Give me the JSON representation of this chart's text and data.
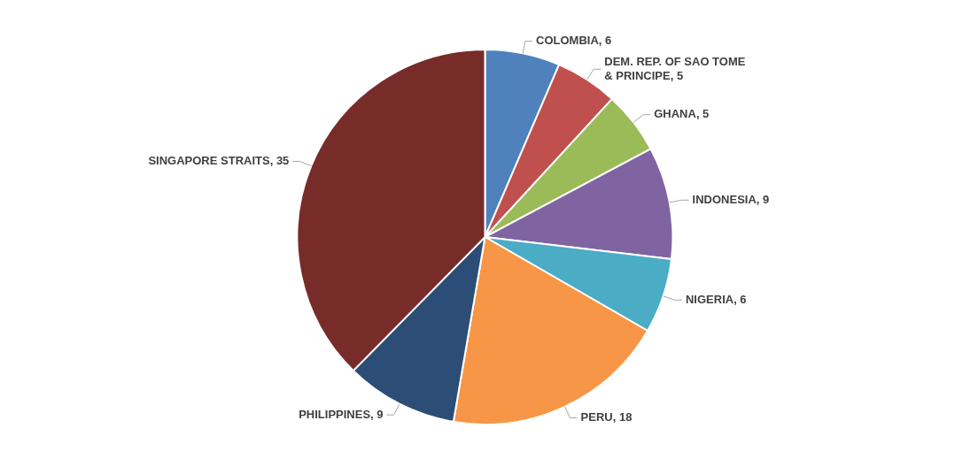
{
  "chart_data": {
    "type": "pie",
    "categories": [
      "COLOMBIA",
      "DEM. REP. OF SAO TOME & PRINCIPE",
      "GHANA",
      "INDONESIA",
      "NIGERIA",
      "PERU",
      "PHILIPPINES",
      "SINGAPORE STRAITS"
    ],
    "values": [
      6,
      5,
      5,
      9,
      6,
      18,
      9,
      35
    ],
    "value_labels": [
      ", 6",
      ", 5",
      ", 5",
      ", 9",
      ", 6",
      ", 18",
      ", 9",
      ", 35"
    ],
    "colors": [
      "#4f81bd",
      "#c0504d",
      "#9bbb59",
      "#8064a2",
      "#4bacc6",
      "#f79646",
      "#2c4d75",
      "#772c2a"
    ],
    "legend": false
  }
}
